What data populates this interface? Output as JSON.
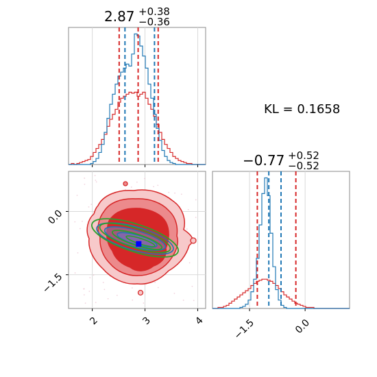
{
  "chart_data": [
    {
      "type": "histogram",
      "panel": "top-left",
      "title": {
        "value": "2.87",
        "plus": "+0.38",
        "minus": "−0.36"
      },
      "xlim": [
        1.55,
        4.15
      ],
      "grid": true,
      "bin_edges_start": 1.55,
      "bin_width": 0.052,
      "series": [
        {
          "color": "#d62728",
          "counts": [
            0,
            1,
            0,
            1,
            2,
            3,
            4,
            5,
            8,
            12,
            16,
            20,
            25,
            30,
            38,
            45,
            50,
            55,
            62,
            66,
            68,
            70,
            72,
            71,
            72,
            68,
            70,
            72,
            66,
            60,
            55,
            48,
            40,
            32,
            25,
            20,
            16,
            12,
            8,
            6,
            4,
            3,
            2,
            1,
            1,
            0,
            0,
            0,
            0,
            0
          ]
        },
        {
          "color": "#1f77b4",
          "counts": [
            0,
            0,
            0,
            0,
            0,
            0,
            0,
            0,
            1,
            3,
            6,
            12,
            20,
            32,
            46,
            60,
            70,
            80,
            88,
            92,
            96,
            100,
            98,
            110,
            130,
            128,
            118,
            108,
            96,
            80,
            66,
            50,
            36,
            24,
            14,
            8,
            4,
            2,
            1,
            0,
            0,
            0,
            0,
            0,
            0,
            0,
            0,
            0,
            0,
            0
          ]
        }
      ],
      "quantile_lines": [
        {
          "color": "#d62728",
          "values": [
            2.51,
            2.87,
            3.25
          ]
        },
        {
          "color": "#1f77b4",
          "values": [
            2.62,
            3.18
          ]
        }
      ]
    },
    {
      "type": "histogram",
      "panel": "bottom-right",
      "title": {
        "value": "−0.77",
        "plus": "+0.52",
        "minus": "−0.52"
      },
      "xlim": [
        -2.5,
        1.2
      ],
      "xticks": [
        "−1.5",
        "0.0"
      ],
      "xtick_values": [
        -1.5,
        0.0
      ],
      "grid": true,
      "bin_edges_start": -2.5,
      "bin_width": 0.074,
      "series": [
        {
          "color": "#d62728",
          "counts": [
            0,
            0,
            1,
            1,
            2,
            3,
            5,
            7,
            9,
            11,
            13,
            15,
            17,
            19,
            22,
            24,
            26,
            27,
            28,
            28,
            27,
            26,
            24,
            22,
            19,
            16,
            13,
            11,
            9,
            7,
            5,
            4,
            3,
            2,
            1,
            1,
            1,
            0,
            0,
            0,
            0,
            0,
            0,
            0,
            0,
            0,
            0,
            0,
            0,
            0
          ]
        },
        {
          "color": "#1f77b4",
          "counts": [
            0,
            0,
            0,
            0,
            0,
            0,
            0,
            0,
            0,
            0,
            1,
            2,
            4,
            8,
            16,
            28,
            48,
            80,
            110,
            125,
            108,
            72,
            40,
            18,
            8,
            3,
            1,
            0,
            0,
            0,
            0,
            0,
            0,
            0,
            0,
            0,
            0,
            0,
            0,
            0,
            0,
            0,
            0,
            0,
            0,
            0,
            0,
            0,
            0,
            0
          ]
        }
      ],
      "quantile_lines": [
        {
          "color": "#d62728",
          "values": [
            -1.29,
            -0.25
          ]
        },
        {
          "color": "#1f77b4",
          "values": [
            -0.98,
            -0.65
          ]
        }
      ]
    },
    {
      "type": "contour",
      "panel": "bottom-left",
      "xlim": [
        1.55,
        4.15
      ],
      "ylim": [
        -2.3,
        0.95
      ],
      "xticks": [
        "2",
        "3",
        "4"
      ],
      "xtick_values": [
        2,
        3,
        4
      ],
      "yticks": [
        "0.0",
        "−1.5"
      ],
      "ytick_values": [
        0.0,
        -1.5
      ],
      "grid": true,
      "red_fill_colors": [
        "#f7c9ca",
        "#ec8a8c",
        "#d62728"
      ],
      "blue_contour_color": "#1f77b4",
      "green_contour_color": "#2ca02c",
      "marker": {
        "x": 2.88,
        "y": -0.77,
        "color": "#0000ff"
      }
    }
  ],
  "annotation": {
    "kl_text": "KL = 0.1658"
  }
}
